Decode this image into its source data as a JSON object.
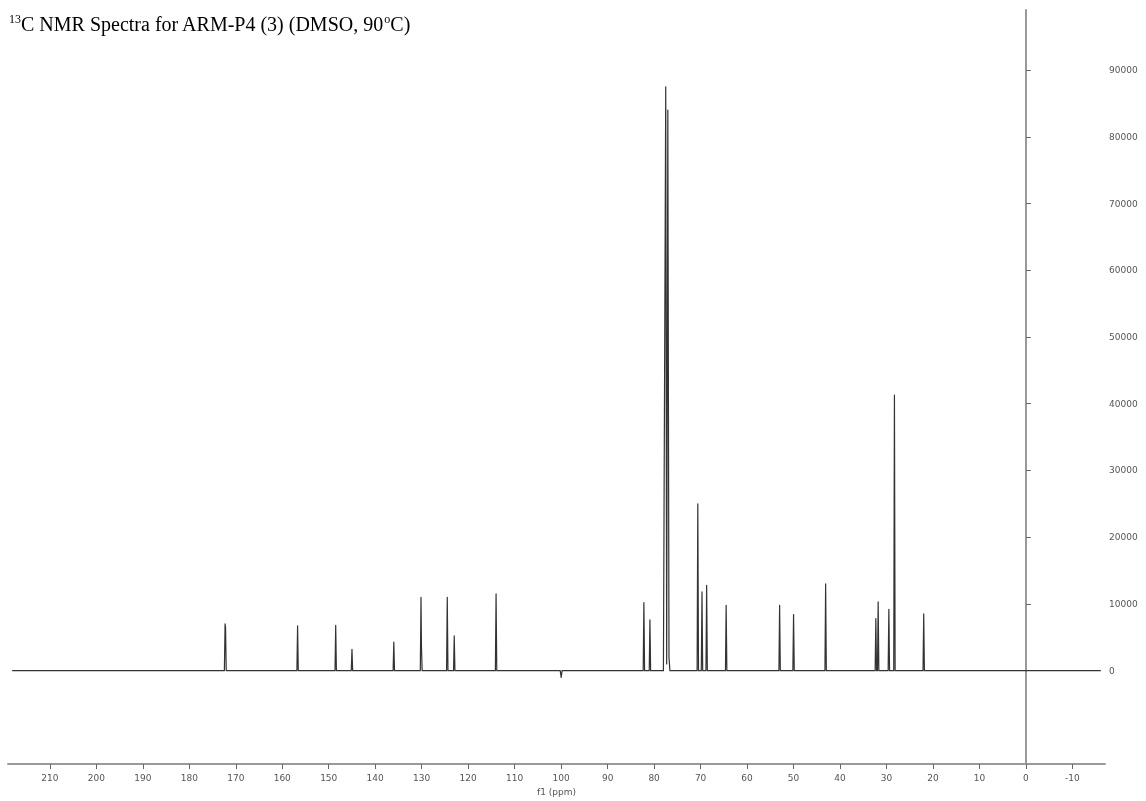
{
  "chart_data": {
    "type": "line",
    "title": "$^{13}$C NMR Spectra for ARM-P4 (3) (DMSO, 90$^{o}$C)",
    "xlabel": "f1 (ppm)",
    "x": [
      218,
      172.45,
      172.3,
      172.2,
      172.05,
      156.85,
      156.7,
      156.55,
      148.65,
      148.5,
      148.35,
      145.15,
      145,
      144.85,
      136.15,
      136,
      135.85,
      130.3,
      130.15,
      130.05,
      129.9,
      124.65,
      124.5,
      124.35,
      123.15,
      123,
      122.85,
      114.15,
      114,
      113.85,
      100.2,
      100,
      99.8,
      82.35,
      82.2,
      82.05,
      81.05,
      80.9,
      80.75,
      78,
      77.5,
      77.3,
      77.05,
      76.8,
      76.6,
      70.75,
      70.6,
      70.45,
      69.85,
      69.7,
      69.55,
      68.85,
      68.7,
      68.55,
      64.65,
      64.5,
      64.35,
      53.15,
      53,
      52.85,
      50.15,
      50,
      49.85,
      43.25,
      43.1,
      42.95,
      32.45,
      32.3,
      32.15,
      31.95,
      31.8,
      31.65,
      29.65,
      29.5,
      29.35,
      28.45,
      28.3,
      28.15,
      22.15,
      22,
      21.85,
      -16
    ],
    "series": [
      {
        "color": "#333333",
        "values": [
          0,
          0,
          7000,
          6500,
          0,
          0,
          6700,
          0,
          0,
          6800,
          0,
          0,
          3200,
          0,
          0,
          4300,
          0,
          0,
          11000,
          3500,
          0,
          0,
          11000,
          0,
          0,
          5200,
          0,
          0,
          11500,
          0,
          0,
          -1000,
          0,
          0,
          10200,
          0,
          0,
          7600,
          0,
          0,
          87500,
          1000,
          84000,
          2000,
          0,
          0,
          25000,
          0,
          0,
          11800,
          0,
          0,
          12800,
          0,
          0,
          9800,
          0,
          0,
          9800,
          0,
          0,
          8400,
          0,
          0,
          13000,
          0,
          0,
          7800,
          0,
          0,
          10300,
          0,
          0,
          9200,
          0,
          0,
          41300,
          0,
          0,
          8500,
          0,
          0
        ]
      }
    ],
    "xlim": [
      219,
      -17
    ],
    "xticks": [
      210,
      200,
      190,
      180,
      170,
      160,
      150,
      140,
      130,
      120,
      110,
      100,
      90,
      80,
      70,
      60,
      50,
      40,
      30,
      20,
      10,
      0,
      -10
    ],
    "ylim": [
      -14000,
      99000
    ],
    "yticks": [
      0,
      10000,
      20000,
      30000,
      40000,
      50000,
      60000,
      70000,
      80000,
      90000
    ],
    "marker": "none",
    "line_style": "solid"
  }
}
